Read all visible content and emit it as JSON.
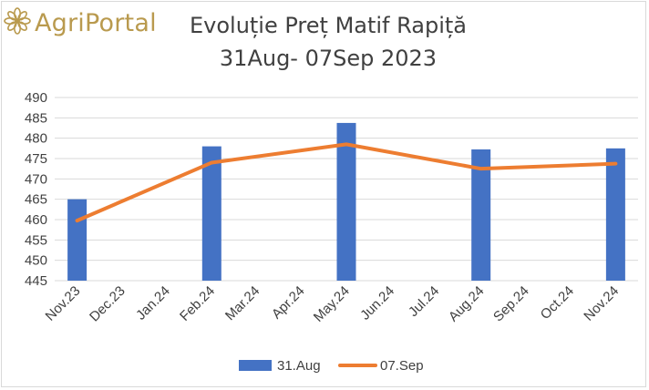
{
  "logo": {
    "text": "AgriPortal",
    "icon": "flower-icon",
    "color": "#b99a4e"
  },
  "chart_data": {
    "type": "bar",
    "title": "Evoluție Preț Matif Rapiță",
    "subtitle": "31Aug- 07Sep 2023",
    "categories": [
      "Nov.23",
      "Dec.23",
      "Jan.24",
      "Feb.24",
      "Mar.24",
      "Apr.24",
      "May.24",
      "Jun.24",
      "Jul.24",
      "Aug.24",
      "Sep.24",
      "Oct.24",
      "Nov.24"
    ],
    "ylim": [
      445,
      490
    ],
    "yticks": [
      "445",
      "450",
      "455",
      "460",
      "465",
      "470",
      "475",
      "480",
      "485",
      "490"
    ],
    "grid": true,
    "legend_position": "bottom",
    "series": [
      {
        "name": "31.Aug",
        "type": "bar",
        "color": "#4472c4",
        "values": [
          465,
          null,
          null,
          478,
          null,
          null,
          483.75,
          null,
          null,
          477.25,
          null,
          null,
          477.5
        ]
      },
      {
        "name": "07.Sep",
        "type": "line",
        "color": "#ed7d31",
        "values": [
          459.75,
          null,
          null,
          474,
          null,
          null,
          478.5,
          null,
          null,
          472.5,
          null,
          null,
          473.75
        ]
      }
    ]
  }
}
